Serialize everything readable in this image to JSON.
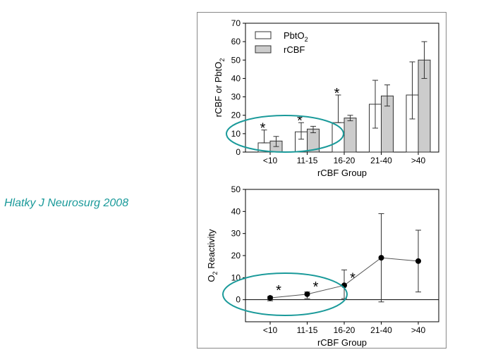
{
  "citation": "Hlatky J Neurosurg 2008",
  "colors": {
    "accent": "#1a9a9a",
    "bar_pbto2": "#ffffff",
    "bar_rcbf": "#cccccc",
    "axis": "#000000",
    "ellipse": "#1a9a9a"
  },
  "chart_data": [
    {
      "type": "bar",
      "categories": [
        "<10",
        "11-15",
        "16-20",
        "21-40",
        ">40"
      ],
      "xlabel": "rCBF Group",
      "ylabel": "rCBF or PbtO2",
      "ylabel_parts": [
        "rCBF or PbtO",
        "2"
      ],
      "ylim": [
        0,
        70
      ],
      "yticks": [
        "0",
        "10",
        "20",
        "30",
        "40",
        "50",
        "60",
        "70"
      ],
      "legend": {
        "placement": "top-left",
        "entries": [
          {
            "main": "PbtO",
            "sub": "2"
          },
          {
            "main": "rCBF",
            "sub": ""
          }
        ]
      },
      "series": [
        {
          "name": "PbtO2",
          "values": [
            5,
            11,
            16,
            26,
            31
          ],
          "err_low": [
            5,
            7,
            16,
            13,
            18
          ],
          "err_high": [
            12,
            16,
            31,
            39,
            49
          ]
        },
        {
          "name": "rCBF",
          "values": [
            6,
            12.5,
            18.5,
            30.5,
            50
          ],
          "err_low": [
            3,
            10.5,
            17,
            25,
            40
          ],
          "err_high": [
            8.5,
            14,
            20,
            36.5,
            60
          ]
        }
      ],
      "significance": [
        "*",
        "*",
        "*",
        "",
        ""
      ],
      "highlight_ellipse_span": [
        "<10",
        "16-20"
      ]
    },
    {
      "type": "line",
      "categories": [
        "<10",
        "11-15",
        "16-20",
        "21-40",
        ">40"
      ],
      "xlabel": "rCBF Group",
      "ylabel": "O2 Reactivity",
      "ylabel_parts": [
        "O",
        "2",
        " Reactivity"
      ],
      "ylim": [
        -10,
        50
      ],
      "yticks": [
        "0",
        "10",
        "20",
        "30",
        "40",
        "50"
      ],
      "series": [
        {
          "name": "O2 Reactivity",
          "values": [
            0.8,
            2.5,
            6.5,
            19,
            17.5
          ],
          "err_low": [
            -0.5,
            0.5,
            0.5,
            -1,
            3.5
          ],
          "err_high": [
            1.5,
            3.5,
            13.5,
            39,
            31.5
          ]
        }
      ],
      "significance": [
        "*",
        "*",
        "*",
        "",
        ""
      ],
      "reference_line": 0,
      "highlight_ellipse_span": [
        "<10",
        "16-20"
      ]
    }
  ]
}
